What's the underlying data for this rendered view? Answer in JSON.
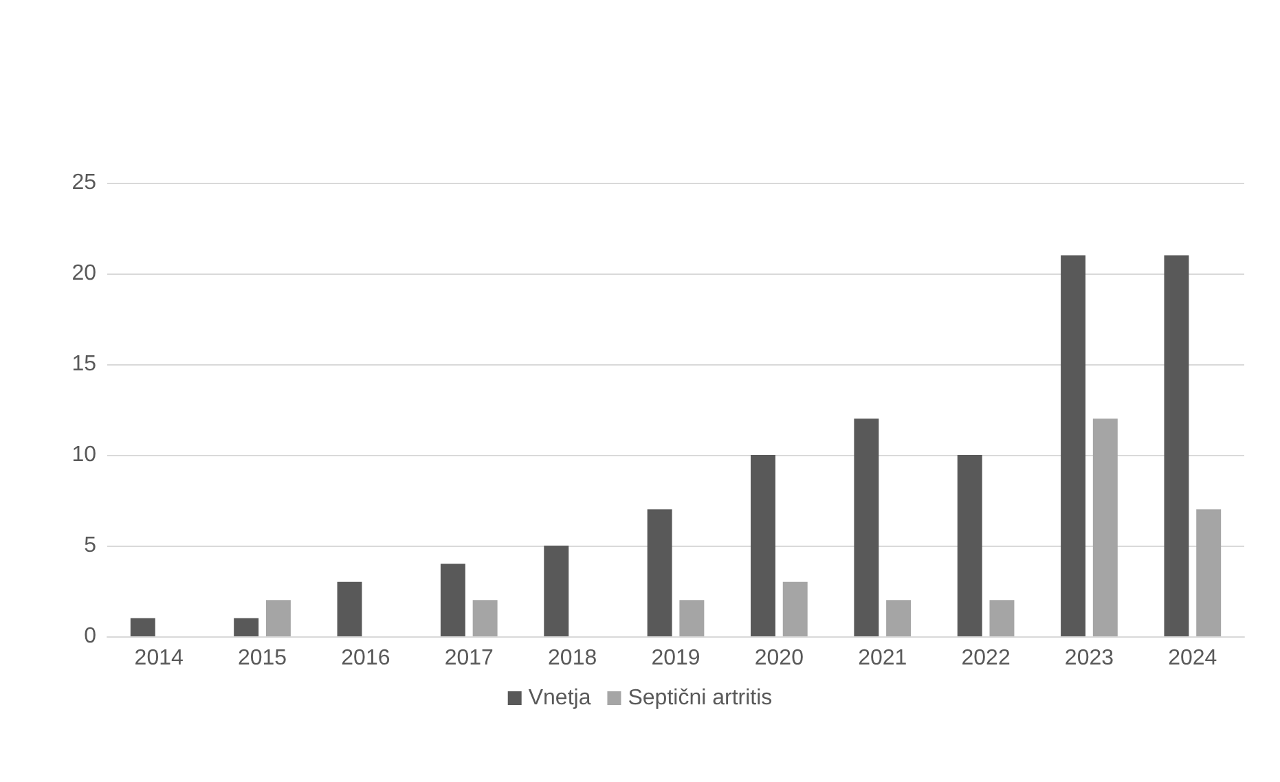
{
  "chart_data": {
    "type": "bar",
    "categories": [
      "2014",
      "2015",
      "2016",
      "2017",
      "2018",
      "2019",
      "2020",
      "2021",
      "2022",
      "2023",
      "2024"
    ],
    "series": [
      {
        "name": "Vnetja",
        "color": "#595959",
        "values": [
          1,
          1,
          3,
          4,
          5,
          7,
          10,
          12,
          10,
          21,
          21
        ]
      },
      {
        "name": "Septični artritis",
        "color": "#a5a5a5",
        "values": [
          null,
          2,
          null,
          2,
          null,
          2,
          3,
          2,
          2,
          12,
          7
        ]
      }
    ],
    "ylim": [
      0,
      25
    ],
    "yticks": [
      0,
      5,
      10,
      15,
      20,
      25
    ],
    "grid": "y",
    "legend": "bottom"
  }
}
